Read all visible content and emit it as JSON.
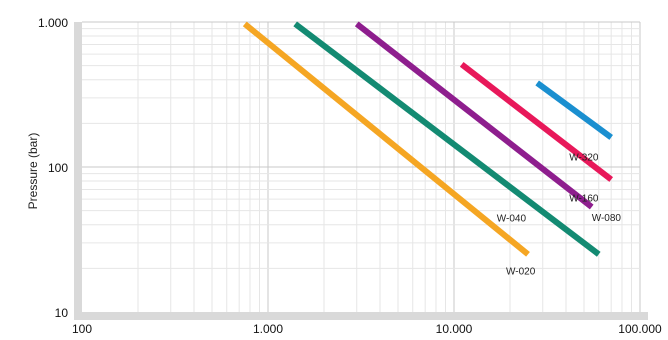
{
  "chart_data": {
    "type": "line",
    "title": "",
    "xlabel": "",
    "ylabel": "Pressure  (bar)",
    "x_scale": "log",
    "y_scale": "log",
    "xlim": [
      100,
      100000
    ],
    "ylim": [
      10,
      1000
    ],
    "grid": true,
    "legend": "none (series labelled at line ends)",
    "x_ticks": [
      {
        "value": 100,
        "label": "100"
      },
      {
        "value": 1000,
        "label": "1.000"
      },
      {
        "value": 10000,
        "label": "10.000"
      },
      {
        "value": 100000,
        "label": "100.000"
      }
    ],
    "y_ticks": [
      {
        "value": 10,
        "label": "10"
      },
      {
        "value": 100,
        "label": "100"
      },
      {
        "value": 1000,
        "label": "1.000"
      }
    ],
    "series": [
      {
        "name": "W-020",
        "color": "#f5a623",
        "x": [
          750,
          25000
        ],
        "y": [
          970,
          25
        ]
      },
      {
        "name": "W-040",
        "color": "#138a72",
        "x": [
          1400,
          60000
        ],
        "y": [
          970,
          25
        ]
      },
      {
        "name": "W-080",
        "color": "#8e1e8e",
        "x": [
          3000,
          55000
        ],
        "y": [
          970,
          53
        ]
      },
      {
        "name": "W-160",
        "color": "#e8185a",
        "x": [
          11000,
          70000
        ],
        "y": [
          510,
          82
        ]
      },
      {
        "name": "W-320",
        "color": "#1a8fd0",
        "x": [
          28000,
          70000
        ],
        "y": [
          380,
          160
        ]
      }
    ]
  }
}
